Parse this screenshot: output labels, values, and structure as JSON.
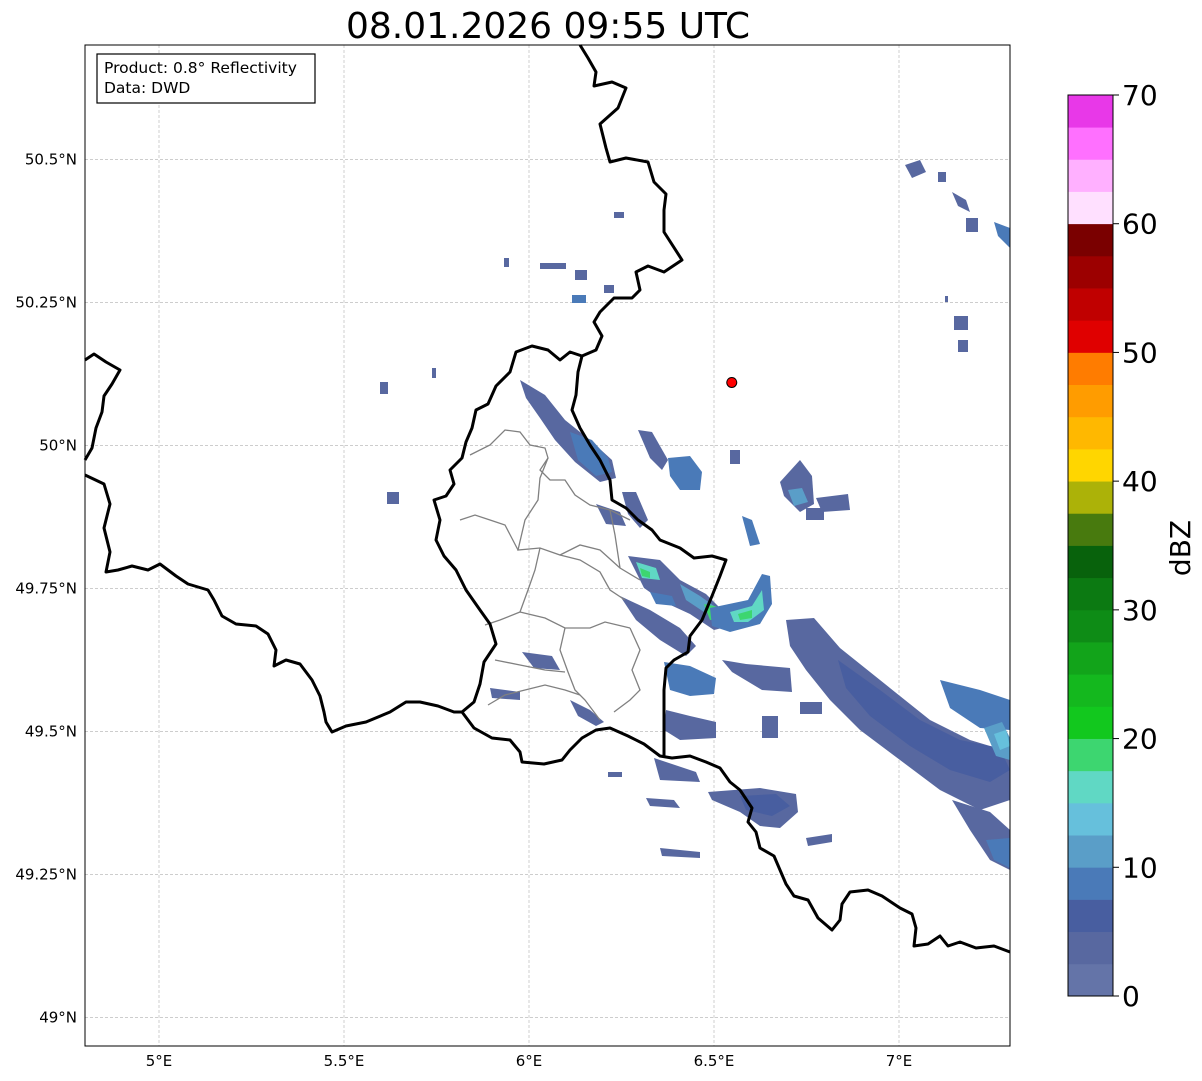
{
  "title": "08.01.2026 09:55 UTC",
  "info_box": {
    "product_line": "Product: 0.8° Reflectivity",
    "data_line": "Data: DWD"
  },
  "map": {
    "extent": {
      "lon_min": 4.8,
      "lon_max": 7.3,
      "lat_min": 48.95,
      "lat_max": 50.7
    },
    "lon_ticks": [
      {
        "value": 5.0,
        "label": "5°E"
      },
      {
        "value": 5.5,
        "label": "5.5°E"
      },
      {
        "value": 6.0,
        "label": "6°E"
      },
      {
        "value": 6.5,
        "label": "6.5°E"
      },
      {
        "value": 7.0,
        "label": "7°E"
      }
    ],
    "lat_ticks": [
      {
        "value": 50.5,
        "label": "50.5°N"
      },
      {
        "value": 50.25,
        "label": "50.25°N"
      },
      {
        "value": 50.0,
        "label": "50°N"
      },
      {
        "value": 49.75,
        "label": "49.75°N"
      },
      {
        "value": 49.5,
        "label": "49.5°N"
      },
      {
        "value": 49.25,
        "label": "49.25°N"
      },
      {
        "value": 49.0,
        "label": "49°N"
      }
    ],
    "grid": true,
    "radar_site": {
      "lon": 6.548,
      "lat": 50.11,
      "color": "#ff0000"
    },
    "borders": {
      "country_color": "#000000",
      "region_color": "#808080"
    }
  },
  "colorbar": {
    "label": "dBZ",
    "min": 0,
    "max": 70,
    "step": 2.5,
    "tick_labels": [
      "0",
      "10",
      "20",
      "30",
      "40",
      "50",
      "60",
      "70"
    ],
    "colors": [
      "#6474a8",
      "#5868a0",
      "#485ea0",
      "#4a7ab8",
      "#5a9ec8",
      "#66c0dc",
      "#60d8c4",
      "#3dd670",
      "#12c81e",
      "#14b81e",
      "#12a41a",
      "#0e8c16",
      "#0c7a12",
      "#08620c",
      "#487a0e",
      "#acb208",
      "#ffd600",
      "#ffb800",
      "#ff9c00",
      "#ff7c00",
      "#e00000",
      "#c00000",
      "#9c0000",
      "#7a0000",
      "#ffe0ff",
      "#ffb0ff",
      "#ff70ff",
      "#e838e8"
    ]
  }
}
